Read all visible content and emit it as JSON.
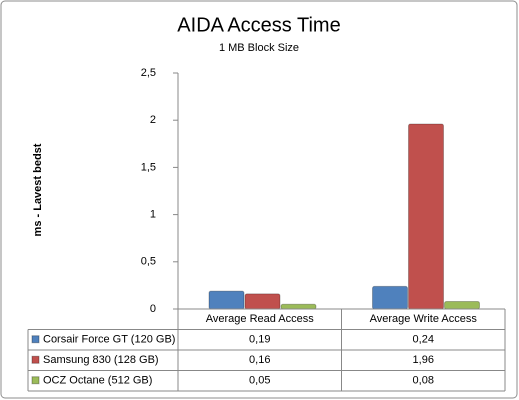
{
  "chart_data": {
    "type": "bar",
    "title": "AIDA Access Time",
    "subtitle": "1 MB Block Size",
    "y_label": "ms - Lavest bedst",
    "categories": [
      "Average Read Access",
      "Average Write Access"
    ],
    "series": [
      {
        "name": "Corsair Force GT (120 GB)",
        "color": "#4f81bd",
        "values": [
          0.19,
          0.24
        ],
        "value_labels": [
          "0,19",
          "0,24"
        ]
      },
      {
        "name": "Samsung 830 (128 GB)",
        "color": "#c0504d",
        "values": [
          0.16,
          1.96
        ],
        "value_labels": [
          "0,16",
          "1,96"
        ]
      },
      {
        "name": "OCZ Octane (512 GB)",
        "color": "#9bbb59",
        "values": [
          0.05,
          0.08
        ],
        "value_labels": [
          "0,05",
          "0,08"
        ]
      }
    ],
    "ylim": [
      0,
      2.5
    ],
    "yticks": [
      0,
      {
        "value": 0.5,
        "label": "0,5"
      },
      1,
      {
        "value": 1.5,
        "label": "1,5"
      },
      2,
      {
        "value": 2.5,
        "label": "2,5"
      }
    ],
    "grid": false
  }
}
